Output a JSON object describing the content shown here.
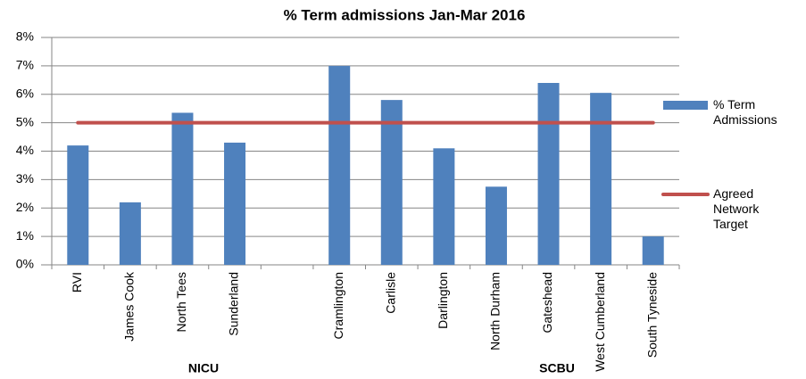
{
  "chart_data": {
    "type": "bar",
    "title": "% Term admissions Jan-Mar 2016",
    "categories": [
      "RVI",
      "James Cook",
      "North Tees",
      "Sunderland",
      null,
      "Cramlington",
      "Carlisle",
      "Darlington",
      "North Durham",
      "Gateshead",
      "West Cumberland",
      "South Tyneside"
    ],
    "group_labels": [
      "NICU",
      "SCBU"
    ],
    "series": [
      {
        "name": "% Term Admissions",
        "type": "bar",
        "color": "#4f81bd",
        "values": [
          4.2,
          2.2,
          5.35,
          4.3,
          null,
          7.0,
          5.8,
          4.1,
          2.75,
          6.4,
          6.05,
          1.0
        ]
      },
      {
        "name": "Agreed Network Target",
        "type": "line",
        "color": "#c0504d",
        "values": [
          5,
          5,
          5,
          5,
          5,
          5,
          5,
          5,
          5,
          5,
          5,
          5
        ]
      }
    ],
    "ylim": [
      0,
      8
    ],
    "yticks": [
      {
        "value": 0,
        "label": "0%"
      },
      {
        "value": 1,
        "label": "1%"
      },
      {
        "value": 2,
        "label": "2%"
      },
      {
        "value": 3,
        "label": "3%"
      },
      {
        "value": 4,
        "label": "4%"
      },
      {
        "value": 5,
        "label": "5%"
      },
      {
        "value": 6,
        "label": "6%"
      },
      {
        "value": 7,
        "label": "7%"
      },
      {
        "value": 8,
        "label": "8%"
      }
    ],
    "grid": true,
    "legend": "right"
  }
}
